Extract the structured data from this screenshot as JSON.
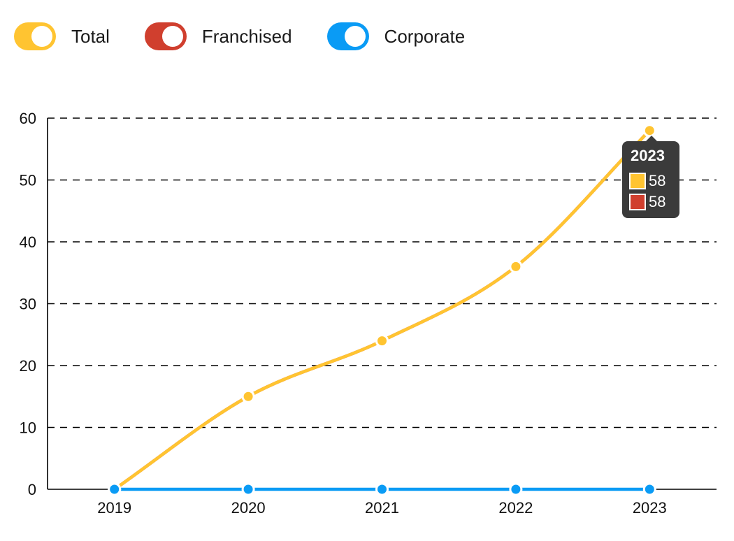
{
  "legend": [
    {
      "label": "Total",
      "color": "#FFC431"
    },
    {
      "label": "Franchised",
      "color": "#D03F2E"
    },
    {
      "label": "Corporate",
      "color": "#0A9BF5"
    }
  ],
  "tooltip": {
    "title": "2023",
    "rows": [
      {
        "value": "58",
        "color": "#FFC431"
      },
      {
        "value": "58",
        "color": "#D03F2E"
      }
    ]
  },
  "chart_data": {
    "type": "line",
    "title": "",
    "xlabel": "",
    "ylabel": "",
    "categories": [
      "2019",
      "2020",
      "2021",
      "2022",
      "2023"
    ],
    "ylim": [
      0,
      60
    ],
    "yticks": [
      0,
      10,
      20,
      30,
      40,
      50,
      60
    ],
    "grid": true,
    "legend_position": "top-left",
    "series": [
      {
        "name": "Total",
        "color": "#FFC431",
        "values": [
          0,
          15,
          24,
          36,
          58
        ]
      },
      {
        "name": "Franchised",
        "color": "#D03F2E",
        "values": [
          0,
          15,
          24,
          36,
          58
        ]
      },
      {
        "name": "Corporate",
        "color": "#0A9BF5",
        "values": [
          0,
          0,
          0,
          0,
          0
        ]
      }
    ]
  }
}
